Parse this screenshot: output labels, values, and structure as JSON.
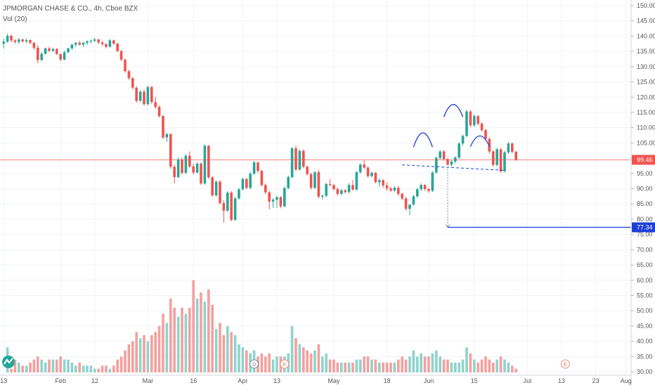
{
  "header": {
    "symbol_line": "JPMORGAN CHASE & CO., 4h, Cboe BZX",
    "volume_line": "Vol (20)"
  },
  "colors": {
    "up": "#26a69a",
    "down": "#ef5350",
    "vol_up": "#8fd3cc",
    "vol_down": "#f4a09e",
    "price_line": "#ef5350",
    "pattern": "#1e3fd6",
    "grid": "#f0f3fa",
    "axis_text": "#555555"
  },
  "chart_data": {
    "type": "candlestick",
    "y_axis": {
      "min": 30,
      "max": 150,
      "ticks": [
        "150.00",
        "145.00",
        "140.00",
        "135.00",
        "130.00",
        "125.00",
        "120.00",
        "115.00",
        "110.00",
        "105.00",
        "100.00",
        "95.00",
        "90.00",
        "85.00",
        "80.00",
        "75.00",
        "70.00",
        "65.00",
        "60.00",
        "55.00",
        "50.00",
        "45.00",
        "40.00",
        "35.00",
        "30.00"
      ]
    },
    "x_axis": {
      "labels": [
        {
          "label": "13",
          "bar": 0
        },
        {
          "label": "Feb",
          "bar": 15
        },
        {
          "label": "12",
          "bar": 24
        },
        {
          "label": "Mar",
          "bar": 38
        },
        {
          "label": "16",
          "bar": 50
        },
        {
          "label": "Apr",
          "bar": 63
        },
        {
          "label": "13",
          "bar": 72
        },
        {
          "label": "May",
          "bar": 87
        },
        {
          "label": "18",
          "bar": 101
        },
        {
          "label": "Jun",
          "bar": 112
        },
        {
          "label": "15",
          "bar": 124
        },
        {
          "label": "Jul",
          "bar": 138
        },
        {
          "label": "13",
          "bar": 147
        },
        {
          "label": "23",
          "bar": 156
        },
        {
          "label": "Aug",
          "bar": 164
        }
      ]
    },
    "last_price": {
      "value": 99.46,
      "label": "99.46"
    },
    "target_price": {
      "value": 77.34,
      "label": "77.34"
    },
    "markers": [
      {
        "letter": "D",
        "bar": 66
      },
      {
        "letter": "E",
        "bar": 74
      },
      {
        "letter": "E",
        "bar": 148
      }
    ],
    "patterns": {
      "neckline": [
        {
          "bar": 105,
          "price": 97.8
        },
        {
          "bar": 132,
          "price": 96
        }
      ],
      "arches": [
        {
          "bar_start": 108,
          "bar_end": 113,
          "price_base": 103.6,
          "price_peak": 108.3
        },
        {
          "bar_start": 116,
          "bar_end": 121,
          "price_base": 113.5,
          "price_peak": 117.6
        },
        {
          "bar_start": 123,
          "bar_end": 128,
          "price_base": 103.8,
          "price_peak": 107.3
        }
      ],
      "projection": {
        "bar": 117,
        "from_price": 96.5,
        "to_price": 77.34
      }
    },
    "candles": [
      [
        137.5,
        139.2,
        136,
        138.2,
        29
      ],
      [
        138.2,
        140.8,
        137.8,
        140.1,
        38
      ],
      [
        140.1,
        140.5,
        138,
        138.6,
        31
      ],
      [
        138.6,
        139,
        137.5,
        138.1,
        34
      ],
      [
        138.1,
        139.4,
        137.4,
        138.9,
        33
      ],
      [
        138.9,
        139.1,
        137.8,
        138.3,
        32
      ],
      [
        138.3,
        139.2,
        137.6,
        138.7,
        32
      ],
      [
        138.7,
        139,
        137.3,
        137.8,
        33
      ],
      [
        137.8,
        138.1,
        135.5,
        136.2,
        34
      ],
      [
        136.2,
        137,
        131.1,
        132.2,
        35
      ],
      [
        132.2,
        134.8,
        131.8,
        134.2,
        34
      ],
      [
        134.2,
        136.3,
        134,
        136,
        33
      ],
      [
        136,
        136.5,
        134.7,
        135.2,
        34
      ],
      [
        135.2,
        136.2,
        134.7,
        135.8,
        34
      ],
      [
        135.8,
        136,
        133.9,
        134.1,
        34
      ],
      [
        134.1,
        134.3,
        131.8,
        132.3,
        35
      ],
      [
        132.3,
        135.2,
        132.1,
        134.7,
        34
      ],
      [
        134.7,
        136.2,
        134.5,
        136,
        34
      ],
      [
        136,
        137.5,
        135.5,
        137.2,
        33
      ],
      [
        137.2,
        138.2,
        136.5,
        137.8,
        32
      ],
      [
        137.8,
        138.5,
        136.9,
        137.2,
        33
      ],
      [
        137.2,
        138.1,
        136.4,
        137.8,
        32
      ],
      [
        137.8,
        138.6,
        137.2,
        138.3,
        32
      ],
      [
        138.3,
        138.9,
        137.6,
        138.5,
        32
      ],
      [
        138.5,
        139.4,
        138,
        138.9,
        31
      ],
      [
        138.9,
        139.1,
        137.5,
        137.9,
        31
      ],
      [
        137.9,
        138.4,
        136.8,
        137.4,
        32
      ],
      [
        137.4,
        137.6,
        136,
        136.5,
        32
      ],
      [
        136.5,
        139,
        136.3,
        138.6,
        31
      ],
      [
        138.6,
        138.9,
        137.2,
        137.5,
        32
      ],
      [
        137.5,
        137.8,
        134.8,
        135.1,
        34
      ],
      [
        135.1,
        135.4,
        131.8,
        132.3,
        35
      ],
      [
        132.3,
        132.6,
        128,
        128.5,
        37
      ],
      [
        128.5,
        129,
        125.7,
        126.2,
        39
      ],
      [
        126.2,
        126.6,
        122.5,
        123.1,
        40
      ],
      [
        123.1,
        123.6,
        118.2,
        118.8,
        43
      ],
      [
        118.8,
        122.3,
        118.4,
        121.8,
        41
      ],
      [
        121.8,
        122.5,
        117.2,
        117.7,
        42
      ],
      [
        117.7,
        123.8,
        117.3,
        123.3,
        40
      ],
      [
        123.3,
        123.8,
        117.8,
        118.4,
        42
      ],
      [
        118.4,
        120.1,
        116.2,
        116.8,
        43
      ],
      [
        116.8,
        117.3,
        113.3,
        113.8,
        45
      ],
      [
        113.8,
        114.2,
        106.2,
        106.8,
        49
      ],
      [
        106.8,
        108.3,
        105.4,
        107.9,
        46
      ],
      [
        107.9,
        108.1,
        96.5,
        97.2,
        54
      ],
      [
        97.2,
        97.8,
        91.8,
        93.8,
        51
      ],
      [
        93.8,
        100.2,
        93.4,
        99.6,
        48
      ],
      [
        99.6,
        100.1,
        94.6,
        95.2,
        51
      ],
      [
        95.2,
        101.3,
        94.8,
        100.8,
        49
      ],
      [
        100.8,
        102.2,
        96.8,
        97.3,
        51
      ],
      [
        97.3,
        98.1,
        94.7,
        95.3,
        60
      ],
      [
        95.3,
        98.6,
        94.9,
        98.2,
        54
      ],
      [
        98.2,
        98.6,
        91.2,
        91.7,
        56
      ],
      [
        91.7,
        104.5,
        91.3,
        104.1,
        53
      ],
      [
        104.1,
        104.3,
        93.2,
        93.7,
        57
      ],
      [
        93.7,
        94.2,
        87.3,
        87.8,
        52
      ],
      [
        87.8,
        92.7,
        87.4,
        92.3,
        44
      ],
      [
        92.3,
        92.8,
        84.8,
        85.3,
        46
      ],
      [
        85.3,
        86.2,
        78.8,
        82.8,
        42
      ],
      [
        82.8,
        89.2,
        82.4,
        88.7,
        45
      ],
      [
        88.7,
        89.2,
        79.3,
        79.8,
        43
      ],
      [
        79.8,
        87.3,
        79.4,
        86.8,
        42
      ],
      [
        86.8,
        90.2,
        86.4,
        89.8,
        39
      ],
      [
        89.8,
        93.6,
        89.4,
        93.2,
        38
      ],
      [
        93.2,
        93.5,
        89.8,
        90.3,
        37
      ],
      [
        90.3,
        95.5,
        89.8,
        94.9,
        36
      ],
      [
        94.9,
        99.1,
        94.5,
        98.6,
        37
      ],
      [
        98.6,
        98.9,
        95.2,
        95.8,
        35
      ],
      [
        95.8,
        96.2,
        90.7,
        91.2,
        36
      ],
      [
        91.2,
        91.7,
        88.2,
        88.8,
        35
      ],
      [
        88.8,
        89.3,
        83.2,
        85.8,
        36
      ],
      [
        85.8,
        86.9,
        83.7,
        86.4,
        34
      ],
      [
        86.4,
        87.7,
        83.8,
        87.2,
        35
      ],
      [
        87.2,
        87.6,
        83.6,
        84.2,
        35
      ],
      [
        84.2,
        90.7,
        83.9,
        90.2,
        35
      ],
      [
        90.2,
        94.3,
        89.8,
        93.8,
        36
      ],
      [
        93.8,
        103.7,
        93.4,
        103.2,
        45
      ],
      [
        103.2,
        104.1,
        95.7,
        96.3,
        41
      ],
      [
        96.3,
        102.8,
        95.9,
        102.4,
        39
      ],
      [
        102.4,
        102.9,
        96.7,
        97.2,
        38
      ],
      [
        97.2,
        97.6,
        94.3,
        94.8,
        37
      ],
      [
        94.8,
        95.2,
        89.7,
        90.3,
        36
      ],
      [
        90.3,
        95.8,
        89.9,
        95.4,
        37
      ],
      [
        95.4,
        96.2,
        86.8,
        87.4,
        39
      ],
      [
        87.4,
        88.1,
        86.5,
        87.7,
        35
      ],
      [
        87.7,
        91.9,
        87.3,
        91.5,
        36
      ],
      [
        91.5,
        93.2,
        90.8,
        91.2,
        34
      ],
      [
        91.2,
        91.6,
        89.3,
        89.9,
        34
      ],
      [
        89.9,
        90.3,
        87.7,
        88.3,
        33
      ],
      [
        88.3,
        89.9,
        87.9,
        89.5,
        33
      ],
      [
        89.5,
        89.8,
        88.4,
        88.9,
        33
      ],
      [
        88.9,
        91.8,
        88.5,
        91.2,
        33
      ],
      [
        91.2,
        92.8,
        89.3,
        89.7,
        33
      ],
      [
        89.7,
        95.8,
        89.4,
        95.4,
        34
      ],
      [
        95.4,
        98.3,
        94.9,
        97.9,
        34
      ],
      [
        97.9,
        99.3,
        96.5,
        96.9,
        35
      ],
      [
        96.9,
        97.3,
        93.6,
        94.1,
        35
      ],
      [
        94.1,
        95.6,
        93.7,
        95.2,
        34
      ],
      [
        95.2,
        95.5,
        91.7,
        92.1,
        34
      ],
      [
        92.1,
        93.3,
        90.7,
        92.8,
        33
      ],
      [
        92.8,
        93.1,
        90.4,
        91.1,
        33
      ],
      [
        91.1,
        92.1,
        89.3,
        90.1,
        33
      ],
      [
        90.1,
        90.7,
        88.9,
        89.4,
        33
      ],
      [
        89.4,
        90.8,
        88.9,
        90.3,
        33
      ],
      [
        90.3,
        90.9,
        87.6,
        88.3,
        34
      ],
      [
        88.3,
        88.7,
        86.2,
        86.8,
        35
      ],
      [
        86.8,
        87.3,
        82.8,
        83.4,
        34
      ],
      [
        83.4,
        84.2,
        81.3,
        84.8,
        35
      ],
      [
        84.8,
        87.9,
        84.4,
        87.5,
        37
      ],
      [
        87.5,
        90.3,
        87.1,
        89.8,
        35
      ],
      [
        89.8,
        91.7,
        89.3,
        91.2,
        36
      ],
      [
        91.2,
        91.6,
        89.4,
        89.9,
        35
      ],
      [
        89.9,
        90.2,
        88.7,
        89.3,
        35
      ],
      [
        89.3,
        95.7,
        88.9,
        95.3,
        36
      ],
      [
        95.3,
        100.6,
        94.9,
        100.1,
        37
      ],
      [
        100.1,
        102.6,
        99.6,
        102.2,
        35
      ],
      [
        102.2,
        102.6,
        99.2,
        99.7,
        34
      ],
      [
        99.7,
        100.1,
        97.5,
        97.9,
        34
      ],
      [
        97.9,
        99.4,
        97.3,
        98.9,
        33
      ],
      [
        98.9,
        100.6,
        98.3,
        100.2,
        33
      ],
      [
        100.2,
        105.2,
        99.8,
        104.8,
        33
      ],
      [
        104.8,
        107.7,
        104.2,
        107.3,
        34
      ],
      [
        107.3,
        115.9,
        106.9,
        115.3,
        38
      ],
      [
        115.3,
        115.7,
        110.2,
        110.8,
        36
      ],
      [
        110.8,
        114.3,
        110.3,
        113.8,
        34
      ],
      [
        113.8,
        114.1,
        110.8,
        111.3,
        33
      ],
      [
        111.3,
        111.8,
        108.7,
        109.2,
        34
      ],
      [
        109.2,
        109.6,
        105.7,
        106.3,
        35
      ],
      [
        106.3,
        106.8,
        101.5,
        102.2,
        34
      ],
      [
        102.2,
        102.6,
        97.2,
        97.8,
        33
      ],
      [
        97.8,
        103.4,
        97.3,
        102.9,
        34
      ],
      [
        102.9,
        103.3,
        95.2,
        95.7,
        35
      ],
      [
        95.7,
        102.4,
        95.3,
        101.9,
        34
      ],
      [
        101.9,
        105.3,
        101.4,
        104.8,
        33
      ],
      [
        104.8,
        105.1,
        101.6,
        102.1,
        32
      ],
      [
        102.1,
        102.4,
        99.1,
        99.46,
        31
      ]
    ]
  }
}
